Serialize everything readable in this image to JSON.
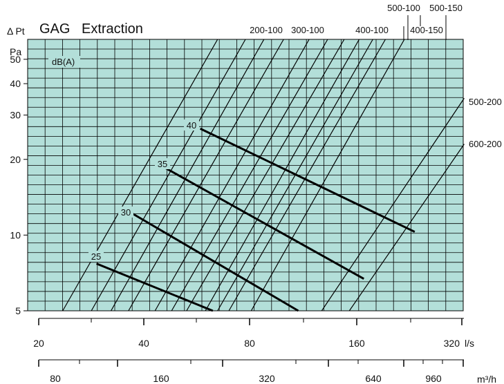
{
  "chart_data": {
    "type": "line",
    "title": "GAG",
    "subtitle": "Extraction",
    "ylabel": "Δ Pt",
    "yunit": "Pa",
    "x_scale": "log",
    "y_scale": "log",
    "xlim": [
      20,
      320
    ],
    "ylim": [
      5,
      60
    ],
    "x_ticks_ls": [
      20,
      40,
      80,
      160,
      320
    ],
    "x_unit_ls": "l/s",
    "x_ticks_m3h": [
      80,
      160,
      320,
      640,
      960
    ],
    "x_unit_m3h": "m³/h",
    "y_ticks": [
      5,
      10,
      20,
      30,
      40,
      50
    ],
    "grid": true,
    "background_color": "#b3dfd9",
    "line_color": "#000000",
    "size_curves": [
      {
        "name": "200-100",
        "points": [
          [
            25,
            5
          ],
          [
            67,
            60
          ]
        ]
      },
      {
        "name": "300-100",
        "points": [
          [
            30,
            5
          ],
          [
            80,
            60
          ]
        ]
      },
      {
        "name": "400-100",
        "points": [
          [
            45,
            5
          ],
          [
            120,
            60
          ]
        ]
      },
      {
        "name": "500-100",
        "points": [
          [
            55,
            5
          ],
          [
            150,
            60
          ]
        ]
      },
      {
        "name": "400-150",
        "points": [
          [
            67,
            5
          ],
          [
            180,
            60
          ]
        ]
      },
      {
        "name": "500-150",
        "points": [
          [
            83,
            5
          ],
          [
            220,
            60
          ]
        ]
      },
      {
        "name": "500-200",
        "points": [
          [
            130,
            5
          ],
          [
            322,
            35
          ]
        ]
      },
      {
        "name": "600-200",
        "points": [
          [
            155,
            5
          ],
          [
            322,
            23
          ]
        ]
      }
    ],
    "extra_curves": [
      {
        "points": [
          [
            34,
            5
          ],
          [
            90,
            60
          ]
        ]
      },
      {
        "points": [
          [
            38,
            5
          ],
          [
            102,
            60
          ]
        ]
      },
      {
        "points": [
          [
            50,
            5
          ],
          [
            135,
            60
          ]
        ]
      },
      {
        "points": [
          [
            62,
            5
          ],
          [
            165,
            60
          ]
        ]
      },
      {
        "points": [
          [
            72,
            5
          ],
          [
            195,
            60
          ]
        ]
      }
    ],
    "noise_label": "dB(A)",
    "noise_curves": [
      {
        "label": "25",
        "points": [
          [
            31,
            7.7
          ],
          [
            65,
            5
          ]
        ]
      },
      {
        "label": "30",
        "points": [
          [
            38.5,
            12.3
          ],
          [
            112,
            5
          ]
        ]
      },
      {
        "label": "35",
        "points": [
          [
            48,
            18.5
          ],
          [
            170,
            6.7
          ]
        ]
      },
      {
        "label": "40",
        "points": [
          [
            60,
            26.5
          ],
          [
            235,
            10.3
          ]
        ]
      }
    ]
  }
}
